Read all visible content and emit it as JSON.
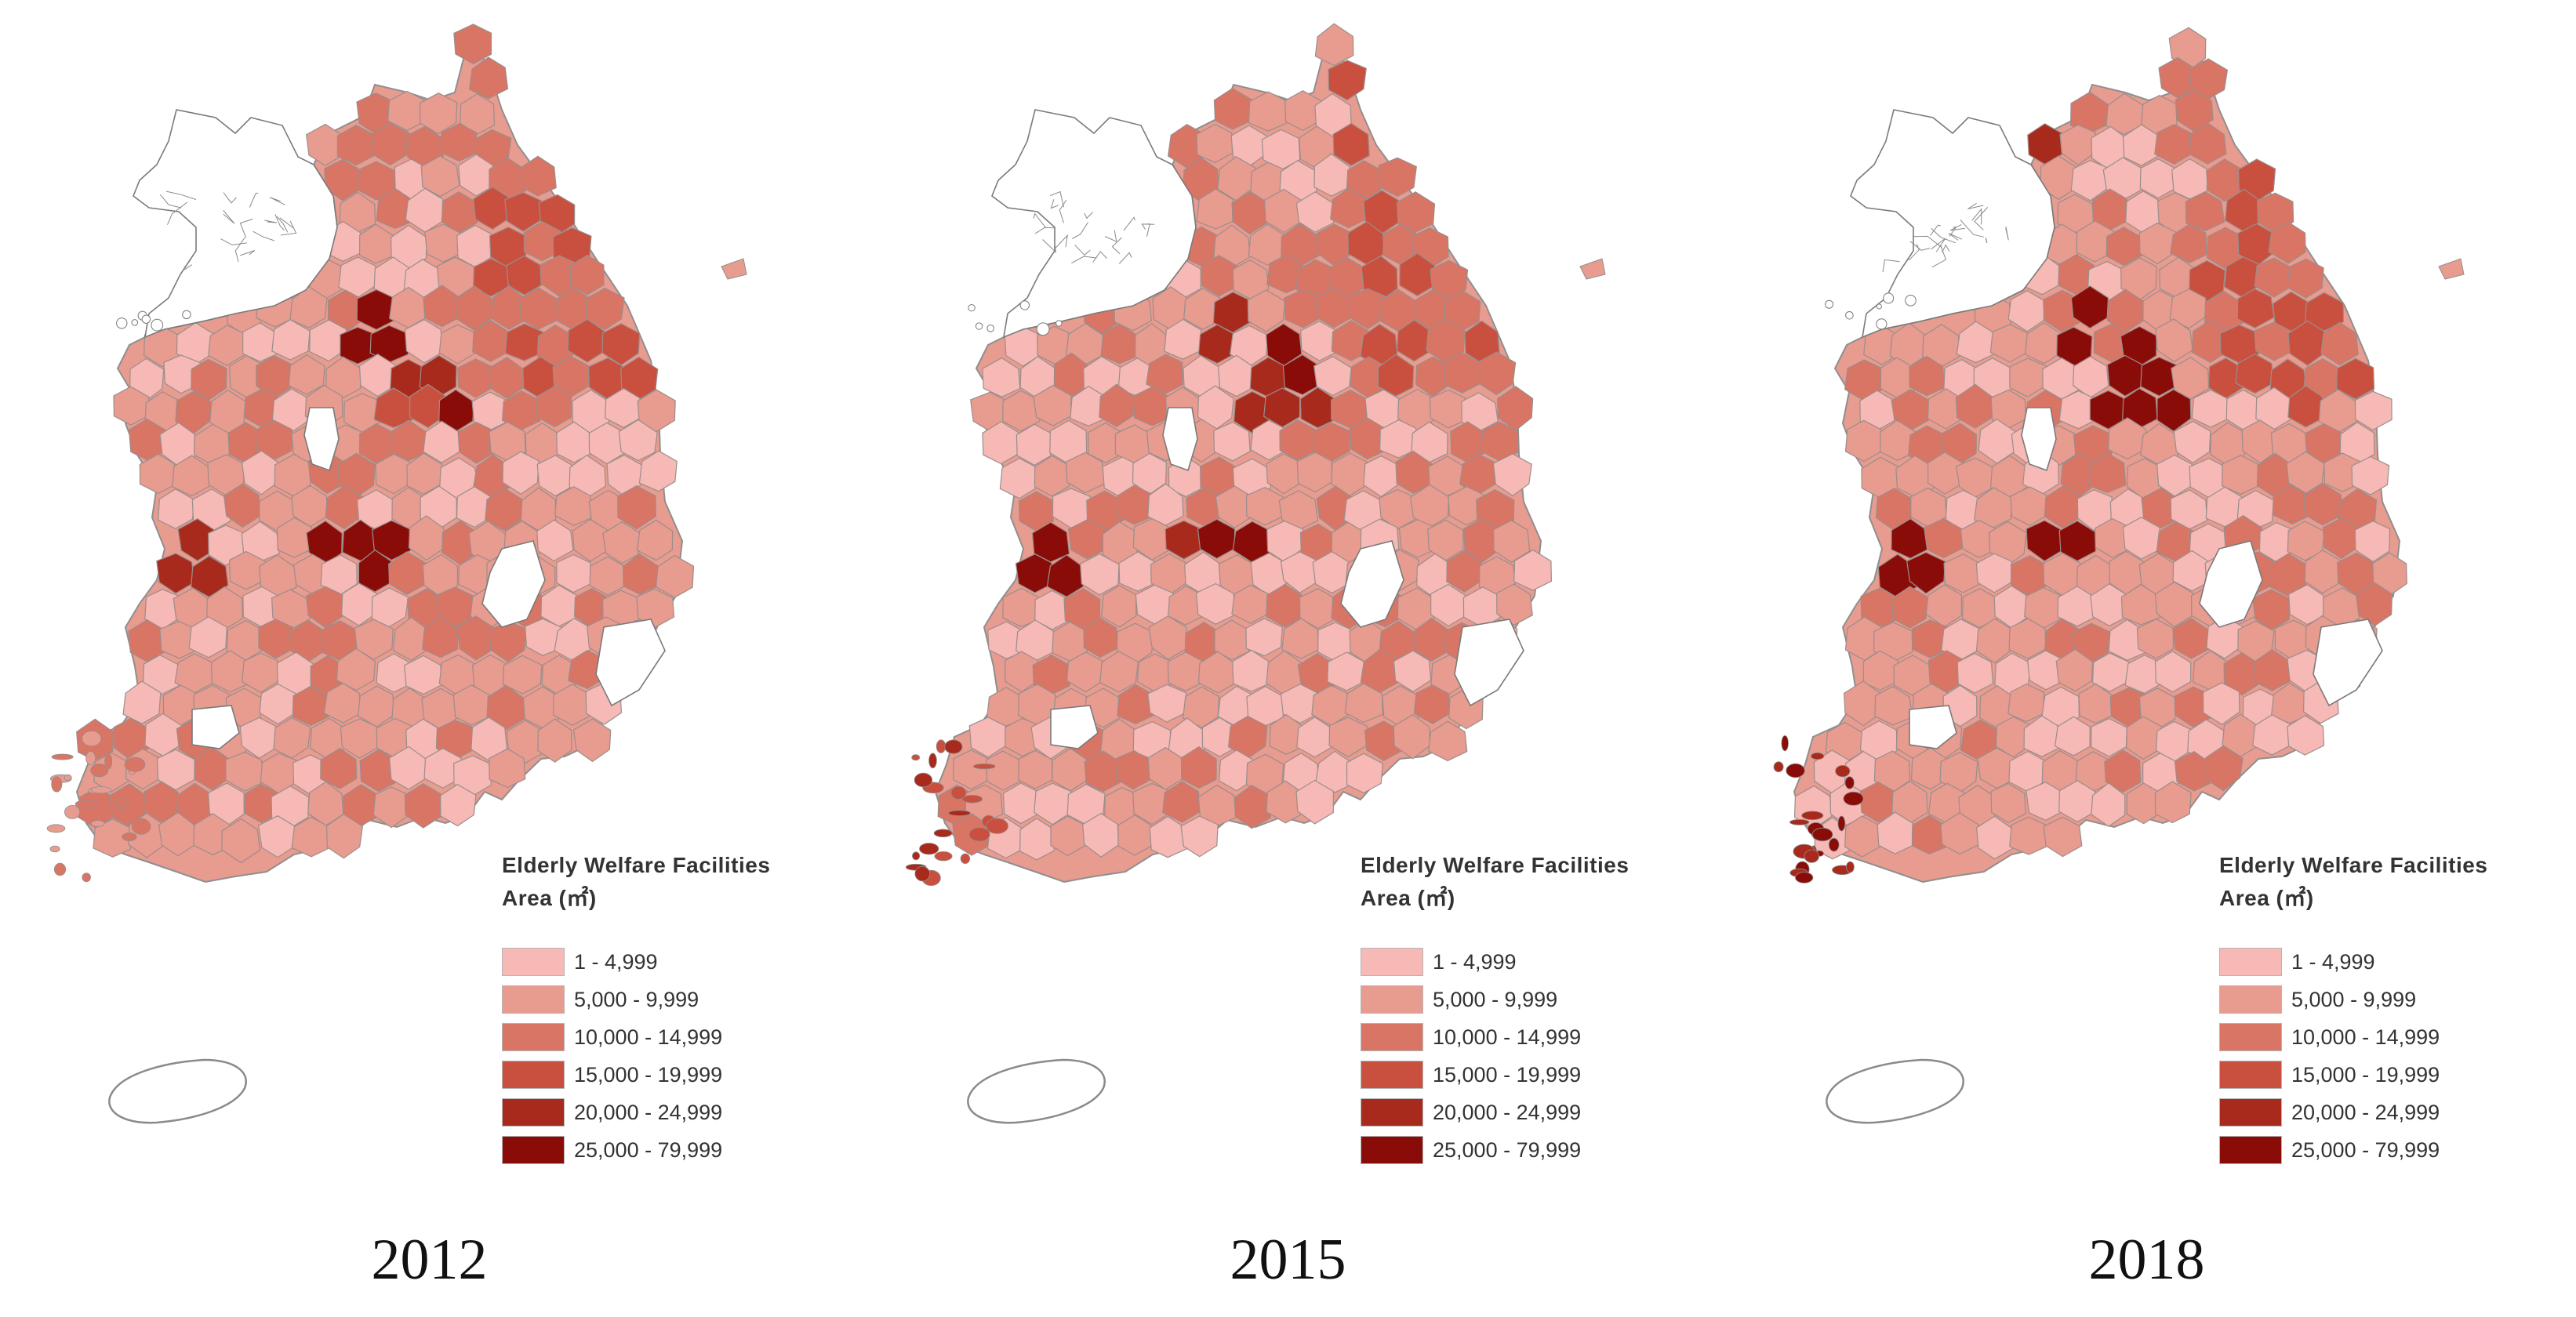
{
  "legend": {
    "title_line1": "Elderly Welfare Facilities",
    "title_line2": "Area (㎡)",
    "classes": [
      {
        "label": "1 - 4,999",
        "color": "#f6b9b5"
      },
      {
        "label": "5,000 - 9,999",
        "color": "#e89b8f"
      },
      {
        "label": "10,000 - 14,999",
        "color": "#d97565"
      },
      {
        "label": "15,000 - 19,999",
        "color": "#c9503f"
      },
      {
        "label": "20,000 - 24,999",
        "color": "#a82a1c"
      },
      {
        "label": "25,000 - 79,999",
        "color": "#8a0c08"
      }
    ],
    "no_data_color": "#ffffff"
  },
  "panels": [
    {
      "year": "2012"
    },
    {
      "year": "2015"
    },
    {
      "year": "2018"
    }
  ]
}
